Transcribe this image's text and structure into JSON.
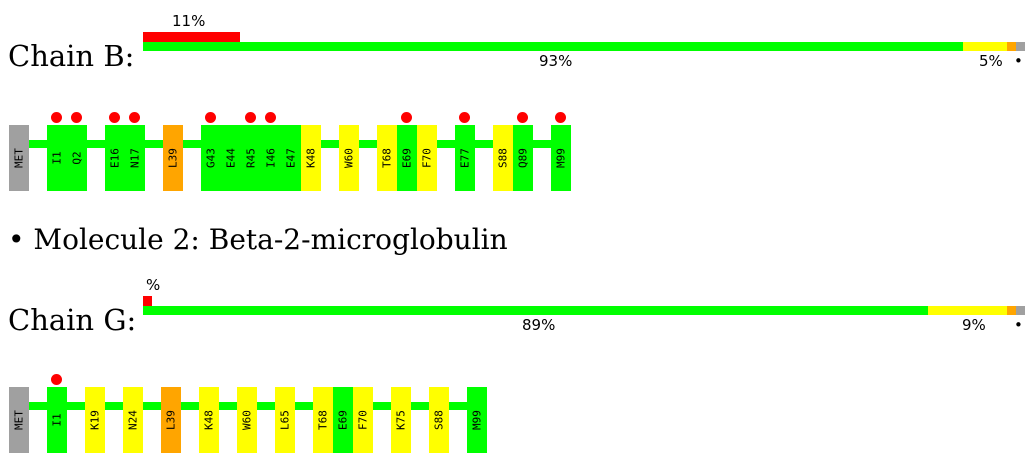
{
  "colors": {
    "good": "#00ff00",
    "warn": "#ffff00",
    "bad": "#ffa500",
    "none": "#a0a0a0",
    "outlier": "#ff0000"
  },
  "chain_b": {
    "label": "Chain B:",
    "top_pct": "11%",
    "bar_main_pct": "93%",
    "bar_warn_pct": "5%",
    "dot": "•",
    "quality_fractions": {
      "good": 0.93,
      "warn": 0.05,
      "bad": 0.01,
      "none": 0.01
    },
    "outlier_fraction": 0.11,
    "residues": [
      {
        "id": "MET",
        "color": "none",
        "dot": false
      },
      {
        "id": "I1",
        "color": "good",
        "dot": true
      },
      {
        "id": "Q2",
        "color": "good",
        "dot": true
      },
      {
        "id": "E16",
        "color": "good",
        "dot": true
      },
      {
        "id": "N17",
        "color": "good",
        "dot": true
      },
      {
        "id": "L39",
        "color": "bad",
        "dot": false
      },
      {
        "id": "G43",
        "color": "good",
        "dot": true
      },
      {
        "id": "E44",
        "color": "good",
        "dot": false
      },
      {
        "id": "R45",
        "color": "good",
        "dot": true
      },
      {
        "id": "I46",
        "color": "good",
        "dot": true
      },
      {
        "id": "E47",
        "color": "good",
        "dot": false
      },
      {
        "id": "K48",
        "color": "warn",
        "dot": false
      },
      {
        "id": "W60",
        "color": "warn",
        "dot": false
      },
      {
        "id": "T68",
        "color": "warn",
        "dot": false
      },
      {
        "id": "E69",
        "color": "good",
        "dot": true
      },
      {
        "id": "F70",
        "color": "warn",
        "dot": false
      },
      {
        "id": "E77",
        "color": "good",
        "dot": true
      },
      {
        "id": "S88",
        "color": "warn",
        "dot": false
      },
      {
        "id": "Q89",
        "color": "good",
        "dot": true
      },
      {
        "id": "M99",
        "color": "good",
        "dot": true
      }
    ]
  },
  "molecule2": {
    "title": "• Molecule 2: Beta-2-microglobulin"
  },
  "chain_g": {
    "label": "Chain G:",
    "top_pct": "%",
    "bar_main_pct": "89%",
    "bar_warn_pct": "9%",
    "dot": "•",
    "quality_fractions": {
      "good": 0.89,
      "warn": 0.09,
      "bad": 0.01,
      "none": 0.01
    },
    "outlier_fraction": 0.01,
    "residues": [
      {
        "id": "MET",
        "color": "none",
        "dot": false
      },
      {
        "id": "I1",
        "color": "good",
        "dot": true
      },
      {
        "id": "K19",
        "color": "warn",
        "dot": false
      },
      {
        "id": "N24",
        "color": "warn",
        "dot": false
      },
      {
        "id": "L39",
        "color": "bad",
        "dot": false
      },
      {
        "id": "K48",
        "color": "warn",
        "dot": false
      },
      {
        "id": "W60",
        "color": "warn",
        "dot": false
      },
      {
        "id": "L65",
        "color": "warn",
        "dot": false
      },
      {
        "id": "T68",
        "color": "warn",
        "dot": false
      },
      {
        "id": "E69",
        "color": "good",
        "dot": false
      },
      {
        "id": "F70",
        "color": "warn",
        "dot": false
      },
      {
        "id": "K75",
        "color": "warn",
        "dot": false
      },
      {
        "id": "S88",
        "color": "warn",
        "dot": false
      },
      {
        "id": "M99",
        "color": "good",
        "dot": false
      }
    ]
  }
}
